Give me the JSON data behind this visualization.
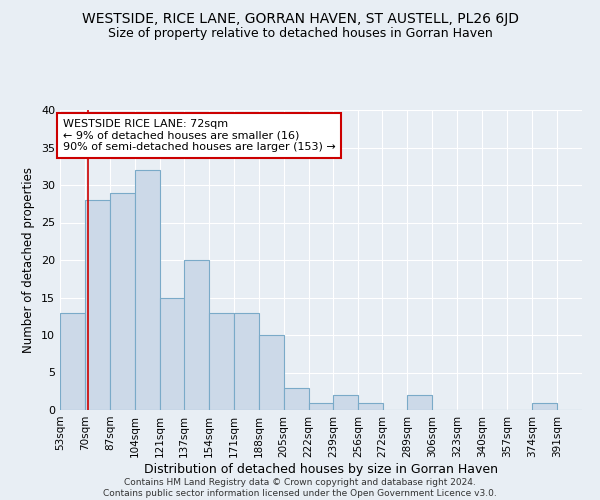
{
  "title": "WESTSIDE, RICE LANE, GORRAN HAVEN, ST AUSTELL, PL26 6JD",
  "subtitle": "Size of property relative to detached houses in Gorran Haven",
  "xlabel": "Distribution of detached houses by size in Gorran Haven",
  "ylabel": "Number of detached properties",
  "footer": "Contains HM Land Registry data © Crown copyright and database right 2024.\nContains public sector information licensed under the Open Government Licence v3.0.",
  "bar_labels": [
    "53sqm",
    "70sqm",
    "87sqm",
    "104sqm",
    "121sqm",
    "137sqm",
    "154sqm",
    "171sqm",
    "188sqm",
    "205sqm",
    "222sqm",
    "239sqm",
    "256sqm",
    "272sqm",
    "289sqm",
    "306sqm",
    "323sqm",
    "340sqm",
    "357sqm",
    "374sqm",
    "391sqm"
  ],
  "bar_values": [
    13,
    28,
    29,
    32,
    15,
    20,
    13,
    13,
    10,
    3,
    1,
    2,
    1,
    0,
    2,
    0,
    0,
    0,
    0,
    1,
    0
  ],
  "bar_color": "#ccd9e8",
  "bar_edge_color": "#7aaac8",
  "property_line_x": 72,
  "property_line_color": "#cc0000",
  "annotation_text": "WESTSIDE RICE LANE: 72sqm\n← 9% of detached houses are smaller (16)\n90% of semi-detached houses are larger (153) →",
  "annotation_box_color": "#ffffff",
  "annotation_box_edge": "#cc0000",
  "ylim": [
    0,
    40
  ],
  "background_color": "#e8eef4",
  "grid_color": "#ffffff",
  "title_fontsize": 10,
  "subtitle_fontsize": 9,
  "xlabel_fontsize": 9,
  "ylabel_fontsize": 8.5,
  "annotation_fontsize": 8,
  "tick_fontsize": 7.5,
  "footer_fontsize": 6.5
}
